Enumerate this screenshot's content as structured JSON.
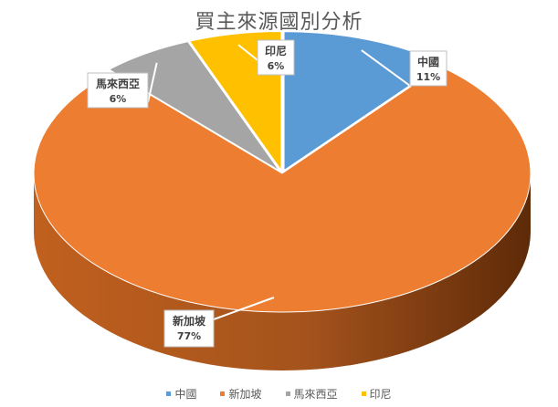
{
  "chart_data": {
    "type": "pie",
    "title": "買主來源國別分析",
    "style": "3d-exploded-perspective",
    "legend_position": "bottom",
    "slices": [
      {
        "name": "中國",
        "value": 11,
        "label": "11%",
        "color": "#5B9BD5",
        "dark": "#2E5F8E"
      },
      {
        "name": "新加坡",
        "value": 77,
        "label": "77%",
        "color": "#ED7D31",
        "dark": "#843D0E"
      },
      {
        "name": "馬來西亞",
        "value": 6,
        "label": "6%",
        "color": "#A5A5A5",
        "dark": "#5E5E5E"
      },
      {
        "name": "印尼",
        "value": 6,
        "label": "6%",
        "color": "#FFC000",
        "dark": "#8F6B00"
      }
    ]
  }
}
